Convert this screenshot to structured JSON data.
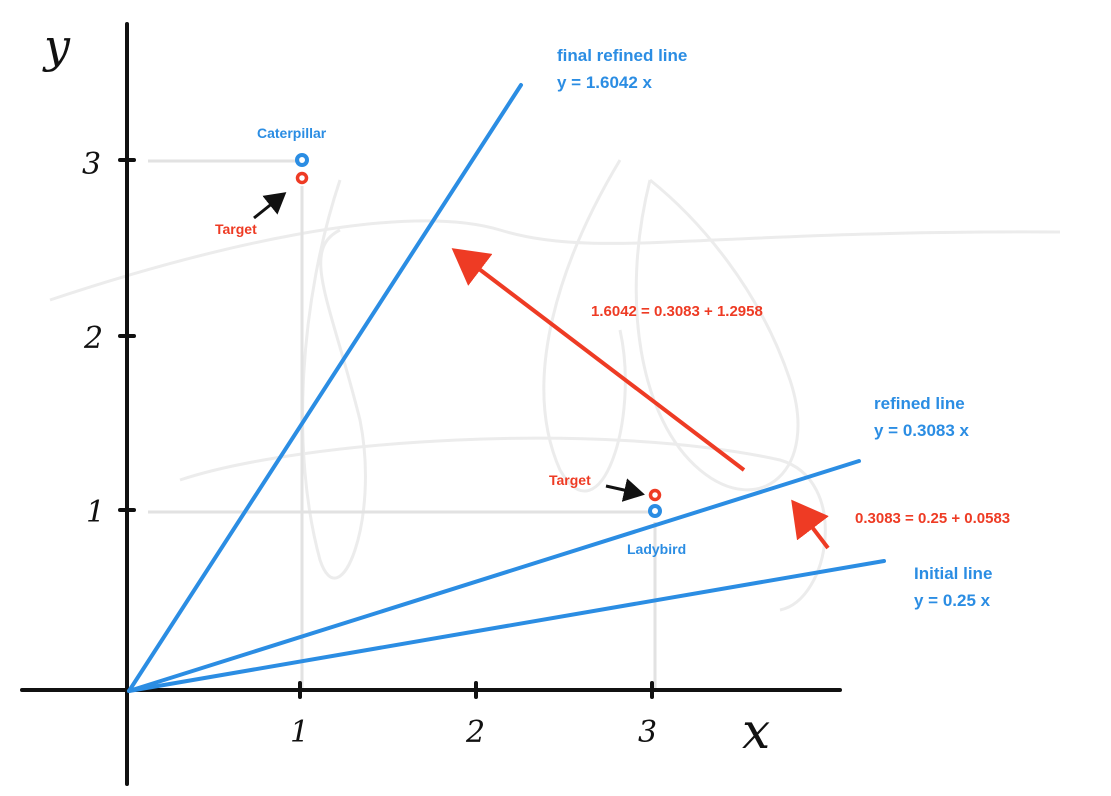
{
  "axes": {
    "x_label": "x",
    "y_label": "y",
    "x_ticks": [
      "1",
      "2",
      "3"
    ],
    "y_ticks": [
      "1",
      "2",
      "3"
    ]
  },
  "points": {
    "caterpillar": {
      "name": "Caterpillar",
      "x": 1,
      "y": 3,
      "target_y": 2.9,
      "target_label": "Target"
    },
    "ladybird": {
      "name": "Ladybird",
      "x": 3,
      "y": 0.99,
      "target_y": 1.1,
      "target_label": "Target"
    }
  },
  "lines": {
    "initial": {
      "title": "Initial line",
      "equation": "y = 0.25 x",
      "slope": 0.25
    },
    "refined": {
      "title": "refined line",
      "equation": "y = 0.3083 x",
      "slope": 0.3083
    },
    "final": {
      "title": "final refined line",
      "equation": "y = 1.6042 x",
      "slope": 1.6042
    }
  },
  "updates": {
    "first": "0.3083 = 0.25 + 0.0583",
    "second": "1.6042 = 0.3083 + 1.2958"
  },
  "colors": {
    "line": "#2b8de3",
    "update_arrow": "#ee3b24",
    "pointer_arrow": "#111111",
    "guide": "#e2e2e2"
  }
}
